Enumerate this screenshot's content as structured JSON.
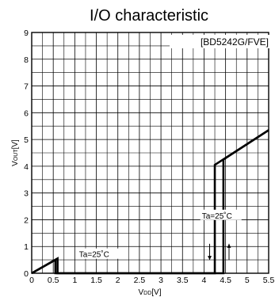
{
  "chart_data": {
    "type": "line",
    "title": "I/O characteristic",
    "legend_text": "[BD5242G/FVE]",
    "xlabel": {
      "main": "V",
      "sub": "DD",
      "unit": "[V]"
    },
    "ylabel": {
      "main": "V",
      "sub": "OUT",
      "unit": "[V]"
    },
    "xlim": [
      0,
      5.5
    ],
    "ylim": [
      0,
      9
    ],
    "x_ticks": [
      "0",
      "0.5",
      "1",
      "1.5",
      "2",
      "2.5",
      "3",
      "3.5",
      "4",
      "4.5",
      "5",
      "5.5"
    ],
    "y_ticks": [
      "0",
      "1",
      "2",
      "3",
      "4",
      "5",
      "6",
      "7",
      "8",
      "9"
    ],
    "grid": true,
    "series": [
      {
        "x": [
          0,
          0.55,
          0.55,
          4.45,
          4.45,
          5.5
        ],
        "y": [
          0,
          0.5,
          0,
          0,
          4.25,
          5.35
        ]
      },
      {
        "x": [
          0,
          0.6,
          0.6,
          4.25,
          4.25,
          5.5
        ],
        "y": [
          0,
          0.55,
          0,
          0,
          4.05,
          5.35
        ]
      }
    ],
    "annotations": [
      {
        "text": "Ta=25˚C",
        "x": 1.1,
        "y": 0.6
      },
      {
        "text": "Ta=25˚C",
        "x": 3.95,
        "y": 2.05
      }
    ],
    "arrows": [
      {
        "direction": "down",
        "x": 4.13,
        "y_from": 1.1,
        "y_to": 0.5
      },
      {
        "direction": "up",
        "x": 4.58,
        "y_from": 0.5,
        "y_to": 1.1
      }
    ]
  }
}
